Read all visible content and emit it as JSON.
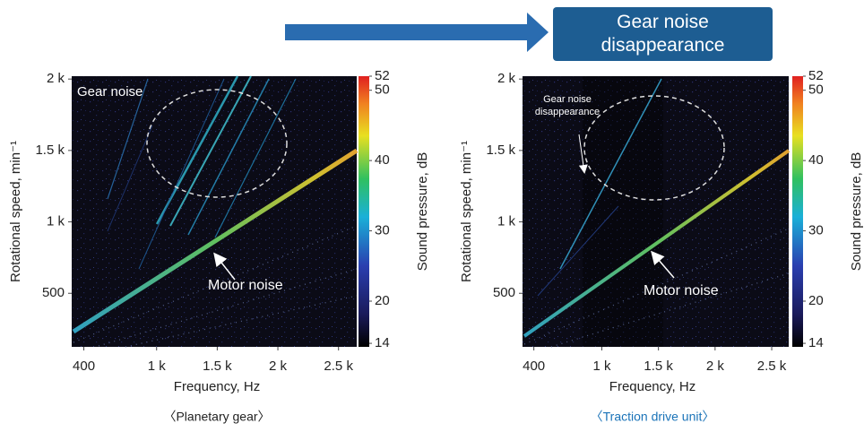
{
  "banner": "Gear noise disappearance",
  "chart_data": [
    {
      "type": "spectrogram",
      "caption": "〈Planetary gear〉",
      "caption_color": "#222222",
      "xlabel": "Frequency, Hz",
      "ylabel": "Rotational speed, min⁻¹",
      "xlim": [
        300,
        2650
      ],
      "xticks": [
        400,
        {
          "value": 1000,
          "label": "1 k"
        },
        {
          "value": 1500,
          "label": "1.5 k"
        },
        {
          "value": 2000,
          "label": "2 k"
        },
        {
          "value": 2500,
          "label": "2.5 k"
        }
      ],
      "ylim": [
        125,
        2020
      ],
      "yticks": [
        500,
        {
          "value": 1000,
          "label": "1 k"
        },
        {
          "value": 1500,
          "label": "1.5 k"
        },
        {
          "value": 2000,
          "label": "2 k"
        }
      ],
      "colorbar": {
        "label": "Sound pressure, dB",
        "clim": [
          13.5,
          52
        ],
        "ticks": [
          14,
          20,
          30,
          40,
          50,
          52
        ]
      },
      "annotations": [
        "Gear noise",
        "Motor noise"
      ]
    },
    {
      "type": "spectrogram",
      "caption": "〈Traction drive unit〉",
      "caption_color": "#1a73b8",
      "xlabel": "Frequency, Hz",
      "ylabel": "Rotational speed, min⁻¹",
      "xlim": [
        300,
        2650
      ],
      "xticks": [
        400,
        {
          "value": 1000,
          "label": "1 k"
        },
        {
          "value": 1500,
          "label": "1.5 k"
        },
        {
          "value": 2000,
          "label": "2 k"
        },
        {
          "value": 2500,
          "label": "2.5 k"
        }
      ],
      "ylim": [
        125,
        2020
      ],
      "yticks": [
        500,
        {
          "value": 1000,
          "label": "1 k"
        },
        {
          "value": 1500,
          "label": "1.5 k"
        },
        {
          "value": 2000,
          "label": "2 k"
        }
      ],
      "colorbar": {
        "label": "Sound pressure, dB",
        "clim": [
          13.5,
          52
        ],
        "ticks": [
          14,
          20,
          30,
          40,
          50,
          52
        ]
      },
      "annotations": [
        "Gear noise disappearance",
        "Motor noise"
      ]
    }
  ]
}
